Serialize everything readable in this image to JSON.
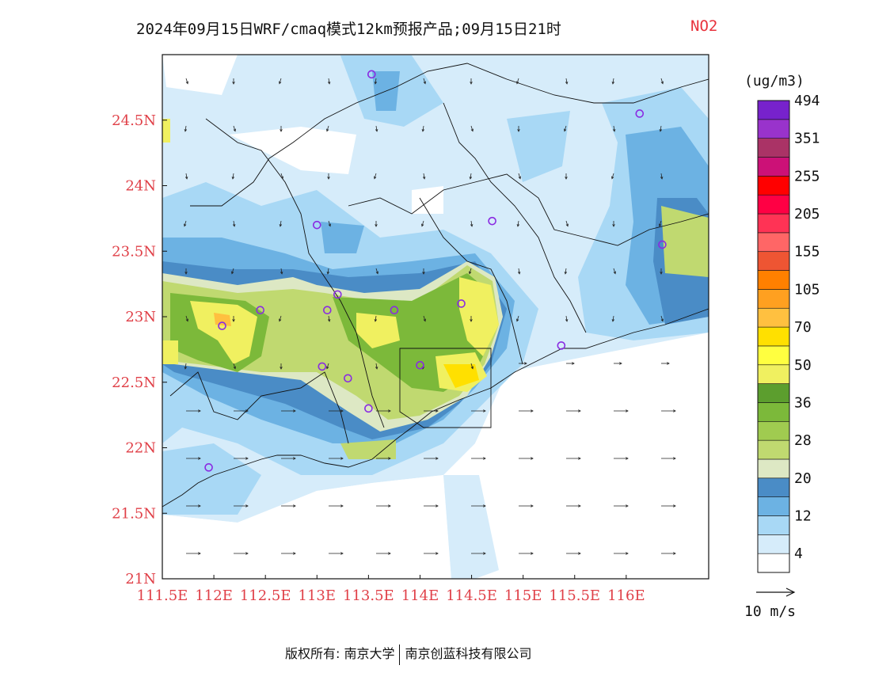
{
  "title": {
    "main": "2024年09月15日WRF/cmaq模式12km预报产品;09月15日21时",
    "species": "NO2"
  },
  "map": {
    "lon_ticks": [
      "111.5E",
      "112E",
      "112.5E",
      "113E",
      "113.5E",
      "114E",
      "114.5E",
      "115E",
      "115.5E",
      "116E"
    ],
    "lat_ticks": [
      "21N",
      "21.5N",
      "22N",
      "22.5N",
      "23N",
      "23.5N",
      "24N",
      "24.5N"
    ],
    "lon_range": [
      111.5,
      116.8
    ],
    "lat_range": [
      21.0,
      25.0
    ],
    "stations": [
      {
        "lon": 113.53,
        "lat": 24.85
      },
      {
        "lon": 116.13,
        "lat": 24.55
      },
      {
        "lon": 113.0,
        "lat": 23.7
      },
      {
        "lon": 114.7,
        "lat": 23.73
      },
      {
        "lon": 116.35,
        "lat": 23.55
      },
      {
        "lon": 112.45,
        "lat": 23.05
      },
      {
        "lon": 113.1,
        "lat": 23.05
      },
      {
        "lon": 113.2,
        "lat": 23.17
      },
      {
        "lon": 113.75,
        "lat": 23.05
      },
      {
        "lon": 114.4,
        "lat": 23.1
      },
      {
        "lon": 112.08,
        "lat": 22.93
      },
      {
        "lon": 113.05,
        "lat": 22.62
      },
      {
        "lon": 113.3,
        "lat": 22.53
      },
      {
        "lon": 114.0,
        "lat": 22.63
      },
      {
        "lon": 113.5,
        "lat": 22.3
      },
      {
        "lon": 115.37,
        "lat": 22.78
      },
      {
        "lon": 111.95,
        "lat": 21.85
      }
    ]
  },
  "legend": {
    "unit": "(ug/m3)",
    "colors": [
      "#ffffff",
      "#d6ecfa",
      "#a8d8f5",
      "#6cb2e3",
      "#4a8cc6",
      "#dde8c4",
      "#c0d970",
      "#a0cb50",
      "#7cb93a",
      "#5c9e2e",
      "#f0f060",
      "#ffff40",
      "#ffe000",
      "#ffc040",
      "#ffa020",
      "#ff8000",
      "#ee5533",
      "#ff6666",
      "#ff3355",
      "#ff0044",
      "#ff0000",
      "#cc1177",
      "#aa3366",
      "#9933cc",
      "#7722cc"
    ],
    "labels": [
      "4",
      "12",
      "20",
      "28",
      "36",
      "50",
      "70",
      "105",
      "155",
      "205",
      "255",
      "351",
      "494"
    ]
  },
  "wind_scale": {
    "label": "10 m/s"
  },
  "footer": {
    "left": "版权所有: 南京大学",
    "right": "南京创蓝科技有限公司"
  }
}
